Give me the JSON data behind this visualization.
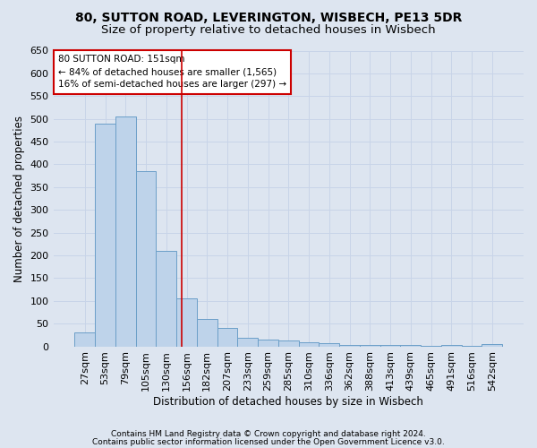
{
  "title1": "80, SUTTON ROAD, LEVERINGTON, WISBECH, PE13 5DR",
  "title2": "Size of property relative to detached houses in Wisbech",
  "xlabel": "Distribution of detached houses by size in Wisbech",
  "ylabel": "Number of detached properties",
  "footnote1": "Contains HM Land Registry data © Crown copyright and database right 2024.",
  "footnote2": "Contains public sector information licensed under the Open Government Licence v3.0.",
  "categories": [
    "27sqm",
    "53sqm",
    "79sqm",
    "105sqm",
    "130sqm",
    "156sqm",
    "182sqm",
    "207sqm",
    "233sqm",
    "259sqm",
    "285sqm",
    "310sqm",
    "336sqm",
    "362sqm",
    "388sqm",
    "413sqm",
    "439sqm",
    "465sqm",
    "491sqm",
    "516sqm",
    "542sqm"
  ],
  "values": [
    30,
    490,
    505,
    385,
    210,
    105,
    60,
    40,
    18,
    15,
    13,
    10,
    8,
    4,
    4,
    4,
    4,
    1,
    4,
    1,
    6
  ],
  "bar_color": "#bed3ea",
  "bar_edgecolor": "#6b9fc8",
  "ylim": [
    0,
    650
  ],
  "yticks": [
    0,
    50,
    100,
    150,
    200,
    250,
    300,
    350,
    400,
    450,
    500,
    550,
    600,
    650
  ],
  "vline_x_index": 4.77,
  "vline_color": "#cc0000",
  "annotation_line1": "80 SUTTON ROAD: 151sqm",
  "annotation_line2": "← 84% of detached houses are smaller (1,565)",
  "annotation_line3": "16% of semi-detached houses are larger (297) →",
  "annotation_box_color": "#ffffff",
  "annotation_box_edgecolor": "#cc0000",
  "bg_color": "#dde5f0",
  "grid_color": "#c8d4e8",
  "title1_fontsize": 10,
  "title2_fontsize": 9.5,
  "axis_label_fontsize": 8.5,
  "tick_fontsize": 8,
  "footnote_fontsize": 6.5
}
